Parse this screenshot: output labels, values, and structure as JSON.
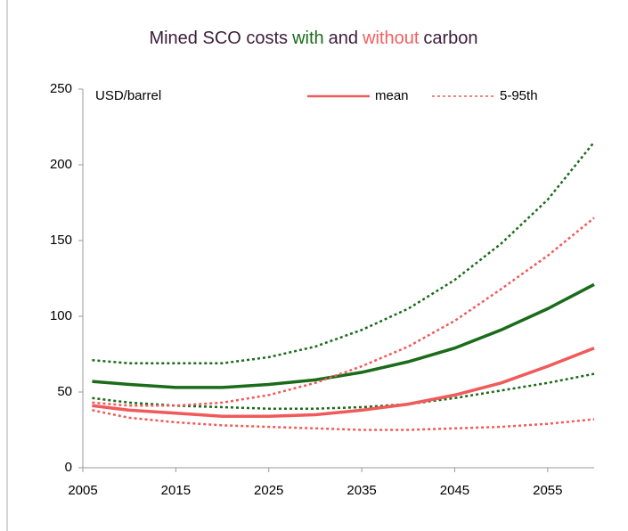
{
  "chart_data": {
    "type": "line",
    "title_parts": [
      {
        "text": "Mined SCO  costs",
        "color": "#3b1d3b"
      },
      {
        "text": "with",
        "color": "#1a6b1a"
      },
      {
        "text": "and",
        "color": "#3b1d3b"
      },
      {
        "text": "without",
        "color": "#f06060"
      },
      {
        "text": "carbon",
        "color": "#3b1d3b"
      }
    ],
    "y_label": "USD/barrel",
    "legend": [
      {
        "label": "mean",
        "style": "solid",
        "color": "#f05a5a"
      },
      {
        "label": "5-95th",
        "style": "dotted",
        "color": "#f05a5a"
      }
    ],
    "x": [
      2006,
      2010,
      2015,
      2020,
      2025,
      2030,
      2035,
      2040,
      2045,
      2050,
      2055,
      2060
    ],
    "series": [
      {
        "color": "#1a6b1a",
        "style": "dotted",
        "values": [
          71,
          69,
          69,
          69,
          73,
          80,
          91,
          105,
          124,
          148,
          177,
          215
        ]
      },
      {
        "color": "#1a6b1a",
        "style": "solid",
        "values": [
          57,
          55,
          53,
          53,
          55,
          58,
          63,
          70,
          79,
          91,
          105,
          121
        ]
      },
      {
        "color": "#1a6b1a",
        "style": "dotted",
        "values": [
          46,
          43,
          41,
          40,
          39,
          39,
          40,
          42,
          46,
          51,
          56,
          62
        ]
      },
      {
        "color": "#f05a5a",
        "style": "dotted",
        "values": [
          43,
          41,
          41,
          43,
          48,
          56,
          67,
          80,
          97,
          118,
          140,
          165
        ]
      },
      {
        "color": "#f05a5a",
        "style": "solid",
        "values": [
          41,
          38,
          36,
          34,
          34,
          35,
          38,
          42,
          48,
          56,
          67,
          79
        ]
      },
      {
        "color": "#f05a5a",
        "style": "dotted",
        "values": [
          38,
          33,
          30,
          28,
          27,
          26,
          25,
          25,
          26,
          27,
          29,
          32
        ]
      }
    ],
    "xlim": [
      2005,
      2060
    ],
    "xticks": [
      2005,
      2015,
      2025,
      2035,
      2045,
      2055
    ],
    "ylim": [
      0,
      250
    ],
    "yticks": [
      0,
      50,
      100,
      150,
      200,
      250
    ]
  }
}
